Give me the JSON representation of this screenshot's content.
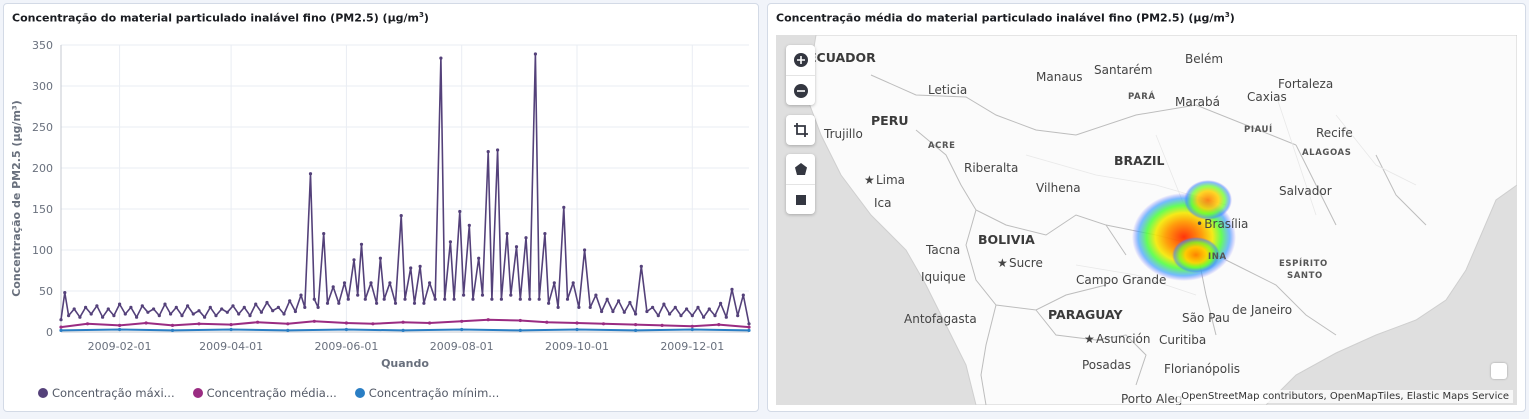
{
  "chart_panel": {
    "title": "Concentração do material particulado inalável fino (PM2.5) (µg/m",
    "title_sup": "3",
    "title_close": ")",
    "legend": [
      {
        "label": "Concentração máxi...",
        "color": "#54417a"
      },
      {
        "label": "Concentração média...",
        "color": "#9a2c82"
      },
      {
        "label": "Concentração mínim...",
        "color": "#2a7ec4"
      }
    ]
  },
  "chart_data": {
    "type": "line",
    "xlabel": "Quando",
    "ylabel": "Concentração de PM2.5 (µg/m³)",
    "ylim": [
      0,
      350
    ],
    "yticks": [
      0,
      50,
      100,
      150,
      200,
      250,
      300,
      350
    ],
    "xlim": [
      "2009-01-01",
      "2009-12-31"
    ],
    "xticks": [
      "2009-02-01",
      "2009-04-01",
      "2009-06-01",
      "2009-08-01",
      "2009-10-01",
      "2009-12-01"
    ],
    "grid": true,
    "series": [
      {
        "name": "Concentração máxi...",
        "color": "#54417a",
        "points": [
          [
            "2009-01-01",
            15
          ],
          [
            "2009-01-03",
            48
          ],
          [
            "2009-01-05",
            20
          ],
          [
            "2009-01-08",
            28
          ],
          [
            "2009-01-11",
            18
          ],
          [
            "2009-01-14",
            30
          ],
          [
            "2009-01-17",
            22
          ],
          [
            "2009-01-20",
            32
          ],
          [
            "2009-01-23",
            18
          ],
          [
            "2009-01-26",
            28
          ],
          [
            "2009-01-29",
            20
          ],
          [
            "2009-02-01",
            34
          ],
          [
            "2009-02-04",
            22
          ],
          [
            "2009-02-07",
            30
          ],
          [
            "2009-02-10",
            18
          ],
          [
            "2009-02-13",
            32
          ],
          [
            "2009-02-16",
            24
          ],
          [
            "2009-02-19",
            28
          ],
          [
            "2009-02-22",
            20
          ],
          [
            "2009-02-25",
            34
          ],
          [
            "2009-02-28",
            22
          ],
          [
            "2009-03-03",
            30
          ],
          [
            "2009-03-06",
            20
          ],
          [
            "2009-03-09",
            32
          ],
          [
            "2009-03-12",
            22
          ],
          [
            "2009-03-15",
            26
          ],
          [
            "2009-03-18",
            18
          ],
          [
            "2009-03-21",
            30
          ],
          [
            "2009-03-24",
            20
          ],
          [
            "2009-03-27",
            28
          ],
          [
            "2009-03-30",
            24
          ],
          [
            "2009-04-02",
            32
          ],
          [
            "2009-04-05",
            22
          ],
          [
            "2009-04-08",
            30
          ],
          [
            "2009-04-11",
            20
          ],
          [
            "2009-04-14",
            34
          ],
          [
            "2009-04-17",
            24
          ],
          [
            "2009-04-20",
            36
          ],
          [
            "2009-04-23",
            26
          ],
          [
            "2009-04-26",
            30
          ],
          [
            "2009-04-29",
            22
          ],
          [
            "2009-05-02",
            38
          ],
          [
            "2009-05-05",
            25
          ],
          [
            "2009-05-08",
            45
          ],
          [
            "2009-05-10",
            30
          ],
          [
            "2009-05-13",
            193
          ],
          [
            "2009-05-15",
            40
          ],
          [
            "2009-05-17",
            30
          ],
          [
            "2009-05-20",
            120
          ],
          [
            "2009-05-22",
            35
          ],
          [
            "2009-05-25",
            55
          ],
          [
            "2009-05-28",
            35
          ],
          [
            "2009-05-31",
            60
          ],
          [
            "2009-06-02",
            40
          ],
          [
            "2009-06-05",
            88
          ],
          [
            "2009-06-07",
            45
          ],
          [
            "2009-06-09",
            107
          ],
          [
            "2009-06-11",
            40
          ],
          [
            "2009-06-14",
            60
          ],
          [
            "2009-06-17",
            35
          ],
          [
            "2009-06-19",
            90
          ],
          [
            "2009-06-21",
            40
          ],
          [
            "2009-06-24",
            60
          ],
          [
            "2009-06-27",
            35
          ],
          [
            "2009-06-30",
            142
          ],
          [
            "2009-07-02",
            40
          ],
          [
            "2009-07-05",
            78
          ],
          [
            "2009-07-07",
            35
          ],
          [
            "2009-07-10",
            80
          ],
          [
            "2009-07-12",
            35
          ],
          [
            "2009-07-15",
            60
          ],
          [
            "2009-07-18",
            40
          ],
          [
            "2009-07-21",
            334
          ],
          [
            "2009-07-23",
            40
          ],
          [
            "2009-07-26",
            110
          ],
          [
            "2009-07-28",
            40
          ],
          [
            "2009-07-31",
            147
          ],
          [
            "2009-08-02",
            45
          ],
          [
            "2009-08-05",
            130
          ],
          [
            "2009-08-07",
            40
          ],
          [
            "2009-08-10",
            90
          ],
          [
            "2009-08-12",
            45
          ],
          [
            "2009-08-15",
            220
          ],
          [
            "2009-08-17",
            40
          ],
          [
            "2009-08-20",
            222
          ],
          [
            "2009-08-22",
            40
          ],
          [
            "2009-08-25",
            120
          ],
          [
            "2009-08-27",
            45
          ],
          [
            "2009-08-30",
            104
          ],
          [
            "2009-09-01",
            40
          ],
          [
            "2009-09-04",
            115
          ],
          [
            "2009-09-06",
            40
          ],
          [
            "2009-09-09",
            339
          ],
          [
            "2009-09-11",
            40
          ],
          [
            "2009-09-14",
            120
          ],
          [
            "2009-09-16",
            35
          ],
          [
            "2009-09-19",
            60
          ],
          [
            "2009-09-21",
            30
          ],
          [
            "2009-09-24",
            152
          ],
          [
            "2009-09-26",
            40
          ],
          [
            "2009-09-29",
            60
          ],
          [
            "2009-10-02",
            30
          ],
          [
            "2009-10-05",
            100
          ],
          [
            "2009-10-08",
            30
          ],
          [
            "2009-10-11",
            45
          ],
          [
            "2009-10-14",
            25
          ],
          [
            "2009-10-17",
            40
          ],
          [
            "2009-10-20",
            25
          ],
          [
            "2009-10-23",
            38
          ],
          [
            "2009-10-26",
            24
          ],
          [
            "2009-10-29",
            36
          ],
          [
            "2009-11-01",
            22
          ],
          [
            "2009-11-04",
            80
          ],
          [
            "2009-11-07",
            25
          ],
          [
            "2009-11-10",
            30
          ],
          [
            "2009-11-13",
            20
          ],
          [
            "2009-11-16",
            34
          ],
          [
            "2009-11-19",
            22
          ],
          [
            "2009-11-22",
            30
          ],
          [
            "2009-11-25",
            20
          ],
          [
            "2009-11-28",
            28
          ],
          [
            "2009-12-01",
            20
          ],
          [
            "2009-12-04",
            30
          ],
          [
            "2009-12-07",
            18
          ],
          [
            "2009-12-10",
            28
          ],
          [
            "2009-12-13",
            20
          ],
          [
            "2009-12-16",
            35
          ],
          [
            "2009-12-19",
            18
          ],
          [
            "2009-12-22",
            52
          ],
          [
            "2009-12-25",
            20
          ],
          [
            "2009-12-28",
            45
          ],
          [
            "2009-12-31",
            10
          ]
        ]
      },
      {
        "name": "Concentração média...",
        "color": "#9a2c82",
        "points": [
          [
            "2009-01-01",
            6
          ],
          [
            "2009-01-15",
            10
          ],
          [
            "2009-02-01",
            8
          ],
          [
            "2009-02-15",
            11
          ],
          [
            "2009-03-01",
            8
          ],
          [
            "2009-03-15",
            10
          ],
          [
            "2009-04-01",
            9
          ],
          [
            "2009-04-15",
            12
          ],
          [
            "2009-05-01",
            10
          ],
          [
            "2009-05-15",
            13
          ],
          [
            "2009-06-01",
            11
          ],
          [
            "2009-06-15",
            10
          ],
          [
            "2009-07-01",
            12
          ],
          [
            "2009-07-15",
            11
          ],
          [
            "2009-08-01",
            13
          ],
          [
            "2009-08-15",
            15
          ],
          [
            "2009-09-01",
            14
          ],
          [
            "2009-09-15",
            12
          ],
          [
            "2009-10-01",
            11
          ],
          [
            "2009-10-15",
            10
          ],
          [
            "2009-11-01",
            9
          ],
          [
            "2009-11-15",
            8
          ],
          [
            "2009-12-01",
            7
          ],
          [
            "2009-12-15",
            9
          ],
          [
            "2009-12-31",
            6
          ]
        ]
      },
      {
        "name": "Concentração mínim...",
        "color": "#2a7ec4",
        "points": [
          [
            "2009-01-01",
            2
          ],
          [
            "2009-02-01",
            3
          ],
          [
            "2009-03-01",
            2
          ],
          [
            "2009-04-01",
            3
          ],
          [
            "2009-05-01",
            2
          ],
          [
            "2009-06-01",
            3
          ],
          [
            "2009-07-01",
            2
          ],
          [
            "2009-08-01",
            3
          ],
          [
            "2009-09-01",
            2
          ],
          [
            "2009-10-01",
            3
          ],
          [
            "2009-11-01",
            2
          ],
          [
            "2009-12-01",
            3
          ],
          [
            "2009-12-31",
            2
          ]
        ]
      }
    ]
  },
  "map_panel": {
    "title": "Concentração média do material particulado inalável fino (PM2.5) (µg/m",
    "title_sup": "3",
    "title_close": ")",
    "attribution": "OpenStreetMap contributors, OpenMapTiles, Elastic Maps Service",
    "controls": [
      "zoom-in",
      "zoom-out",
      "crop",
      "polygon",
      "rectangle"
    ],
    "labels": {
      "ecuador": "ECUADOR",
      "peru": "PERU",
      "brazil": "BRAZIL",
      "bolivia": "BOLIVIA",
      "paraguay": "PARAGUAY",
      "para": "PARÁ",
      "piaui": "PIAUÍ",
      "acre": "ACRE",
      "alagoas": "ALAGOAS",
      "espirito_santo_1": "ESPÍRITO",
      "espirito_santo_2": "SANTO",
      "minas": "INA",
      "manaus": "Manaus",
      "santarem": "Santarém",
      "belem": "Belém",
      "fortaleza": "Fortaleza",
      "leticia": "Leticia",
      "maraba": "Marabá",
      "caxias": "Caxias",
      "trujillo": "Trujillo",
      "recife": "Recife",
      "lima": "Lima",
      "ica": "Ica",
      "riberalta": "Riberalta",
      "vilhena": "Vilhena",
      "salvador": "Salvador",
      "brasilia": "Brasília",
      "tacna": "Tacna",
      "sucre": "Sucre",
      "iquique": "Iquique",
      "campo_grande": "Campo Grande",
      "antofagasta": "Antofagasta",
      "sao_paulo": "São Pau",
      "rio": "de Janeiro",
      "asuncion": "Asunción",
      "curitiba": "Curitiba",
      "posadas": "Posadas",
      "florianopolis": "Florianópolis",
      "porto_alegre": "Porto Aleg"
    }
  }
}
